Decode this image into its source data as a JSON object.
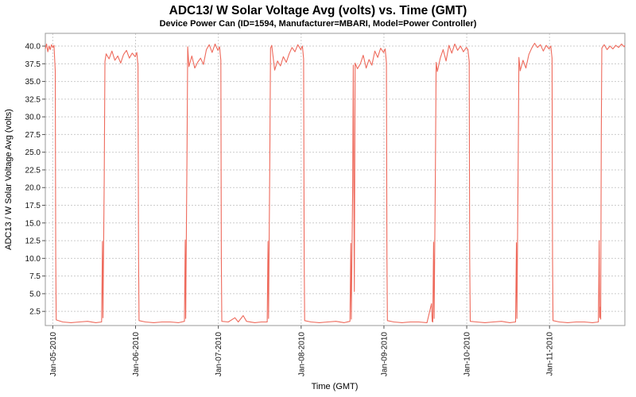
{
  "page": {
    "title": "ADC13/ W Solar Voltage Avg (volts) vs. Time (GMT)",
    "subtitle": "Device Power Can (ID=1594, Manufacturer=MBARI, Model=Power Controller)"
  },
  "chart_data": {
    "type": "line",
    "title": "ADC13/ W Solar Voltage Avg (volts) vs. Time (GMT)",
    "subtitle": "Device Power Can (ID=1594, Manufacturer=MBARI, Model=Power Controller)",
    "xlabel": "Time (GMT)",
    "ylabel": "ADC13 / W Solar Voltage Avg (volts)",
    "legend": "none",
    "grid": "dashed",
    "grid_color": "#cccccc",
    "xlim": [
      -0.09,
      6.91
    ],
    "ylim": [
      0.5,
      41.8
    ],
    "x_unit": "days relative to Jan-05-2010 00:00 GMT",
    "x_tick_values": [
      0,
      1,
      2,
      3,
      4,
      5,
      6
    ],
    "x_tick_labels": [
      "Jan-05-2010",
      "Jan-06-2010",
      "Jan-07-2010",
      "Jan-08-2010",
      "Jan-09-2010",
      "Jan-10-2010",
      "Jan-11-2010"
    ],
    "y_ticks": [
      2.5,
      5.0,
      7.5,
      10.0,
      12.5,
      15.0,
      17.5,
      20.0,
      22.5,
      25.0,
      27.5,
      30.0,
      32.5,
      35.0,
      37.5,
      40.0
    ],
    "series": [
      {
        "name": "ADC13/ W Solar Voltage Avg (volts)",
        "color": "#ee6a5c",
        "points": [
          [
            -0.09,
            39.6
          ],
          [
            -0.075,
            40.3
          ],
          [
            -0.06,
            39.2
          ],
          [
            -0.045,
            40.0
          ],
          [
            -0.03,
            39.5
          ],
          [
            -0.015,
            40.2
          ],
          [
            0.0,
            39.8
          ],
          [
            0.015,
            40.1
          ],
          [
            0.03,
            36.5
          ],
          [
            0.036,
            10.6
          ],
          [
            0.042,
            1.3
          ],
          [
            0.12,
            1.0
          ],
          [
            0.22,
            0.9
          ],
          [
            0.32,
            1.0
          ],
          [
            0.42,
            1.1
          ],
          [
            0.52,
            0.9
          ],
          [
            0.59,
            1.0
          ],
          [
            0.6,
            12.4
          ],
          [
            0.606,
            1.6
          ],
          [
            0.622,
            21.0
          ],
          [
            0.63,
            37.8
          ],
          [
            0.645,
            38.9
          ],
          [
            0.68,
            38.2
          ],
          [
            0.715,
            39.3
          ],
          [
            0.75,
            38.0
          ],
          [
            0.785,
            38.6
          ],
          [
            0.82,
            37.6
          ],
          [
            0.855,
            38.8
          ],
          [
            0.89,
            39.4
          ],
          [
            0.925,
            38.3
          ],
          [
            0.96,
            39.0
          ],
          [
            0.995,
            38.5
          ],
          [
            1.015,
            39.1
          ],
          [
            1.03,
            37.2
          ],
          [
            1.036,
            10.4
          ],
          [
            1.042,
            1.2
          ],
          [
            1.12,
            1.0
          ],
          [
            1.22,
            0.9
          ],
          [
            1.32,
            1.0
          ],
          [
            1.42,
            1.0
          ],
          [
            1.52,
            0.9
          ],
          [
            1.59,
            1.1
          ],
          [
            1.6,
            12.6
          ],
          [
            1.606,
            1.5
          ],
          [
            1.622,
            26.0
          ],
          [
            1.63,
            39.9
          ],
          [
            1.645,
            37.1
          ],
          [
            1.68,
            38.6
          ],
          [
            1.715,
            36.9
          ],
          [
            1.75,
            37.7
          ],
          [
            1.785,
            38.3
          ],
          [
            1.82,
            37.4
          ],
          [
            1.855,
            39.5
          ],
          [
            1.89,
            40.2
          ],
          [
            1.925,
            39.1
          ],
          [
            1.96,
            40.3
          ],
          [
            1.995,
            39.4
          ],
          [
            2.015,
            39.9
          ],
          [
            2.03,
            38.0
          ],
          [
            2.036,
            10.2
          ],
          [
            2.042,
            1.1
          ],
          [
            2.12,
            1.0
          ],
          [
            2.2,
            1.6
          ],
          [
            2.24,
            1.0
          ],
          [
            2.3,
            1.9
          ],
          [
            2.34,
            1.1
          ],
          [
            2.44,
            0.9
          ],
          [
            2.52,
            1.0
          ],
          [
            2.59,
            1.0
          ],
          [
            2.6,
            12.4
          ],
          [
            2.606,
            1.5
          ],
          [
            2.622,
            24.0
          ],
          [
            2.63,
            39.7
          ],
          [
            2.645,
            40.1
          ],
          [
            2.68,
            36.6
          ],
          [
            2.715,
            37.9
          ],
          [
            2.75,
            37.2
          ],
          [
            2.785,
            38.5
          ],
          [
            2.82,
            37.7
          ],
          [
            2.855,
            38.9
          ],
          [
            2.89,
            39.8
          ],
          [
            2.925,
            39.2
          ],
          [
            2.96,
            40.2
          ],
          [
            2.995,
            39.5
          ],
          [
            3.015,
            40.0
          ],
          [
            3.03,
            38.2
          ],
          [
            3.036,
            10.5
          ],
          [
            3.042,
            1.2
          ],
          [
            3.12,
            1.0
          ],
          [
            3.22,
            0.9
          ],
          [
            3.32,
            1.0
          ],
          [
            3.42,
            1.1
          ],
          [
            3.52,
            0.9
          ],
          [
            3.59,
            1.1
          ],
          [
            3.6,
            12.1
          ],
          [
            3.606,
            1.4
          ],
          [
            3.622,
            20.0
          ],
          [
            3.63,
            37.3
          ],
          [
            3.642,
            5.3
          ],
          [
            3.652,
            37.6
          ],
          [
            3.68,
            36.8
          ],
          [
            3.715,
            37.5
          ],
          [
            3.75,
            38.7
          ],
          [
            3.785,
            36.9
          ],
          [
            3.82,
            38.1
          ],
          [
            3.855,
            37.3
          ],
          [
            3.89,
            39.3
          ],
          [
            3.925,
            38.4
          ],
          [
            3.96,
            39.7
          ],
          [
            3.995,
            39.1
          ],
          [
            4.015,
            39.6
          ],
          [
            4.03,
            37.6
          ],
          [
            4.036,
            10.6
          ],
          [
            4.042,
            1.2
          ],
          [
            4.12,
            1.0
          ],
          [
            4.22,
            0.9
          ],
          [
            4.32,
            1.0
          ],
          [
            4.42,
            1.0
          ],
          [
            4.52,
            0.9
          ],
          [
            4.575,
            3.6
          ],
          [
            4.582,
            1.1
          ],
          [
            4.59,
            1.0
          ],
          [
            4.6,
            12.3
          ],
          [
            4.606,
            1.5
          ],
          [
            4.622,
            23.0
          ],
          [
            4.63,
            37.7
          ],
          [
            4.645,
            36.4
          ],
          [
            4.68,
            38.3
          ],
          [
            4.715,
            39.5
          ],
          [
            4.75,
            37.9
          ],
          [
            4.785,
            40.1
          ],
          [
            4.82,
            39.0
          ],
          [
            4.855,
            40.3
          ],
          [
            4.89,
            39.4
          ],
          [
            4.925,
            40.0
          ],
          [
            4.96,
            39.2
          ],
          [
            4.995,
            39.8
          ],
          [
            5.015,
            39.5
          ],
          [
            5.03,
            37.8
          ],
          [
            5.036,
            10.3
          ],
          [
            5.042,
            1.1
          ],
          [
            5.12,
            1.0
          ],
          [
            5.22,
            0.9
          ],
          [
            5.32,
            1.0
          ],
          [
            5.42,
            1.1
          ],
          [
            5.52,
            0.9
          ],
          [
            5.59,
            1.0
          ],
          [
            5.6,
            12.2
          ],
          [
            5.606,
            1.5
          ],
          [
            5.622,
            25.0
          ],
          [
            5.63,
            38.4
          ],
          [
            5.645,
            36.5
          ],
          [
            5.68,
            38.0
          ],
          [
            5.715,
            36.9
          ],
          [
            5.75,
            38.8
          ],
          [
            5.785,
            39.7
          ],
          [
            5.82,
            40.4
          ],
          [
            5.855,
            39.8
          ],
          [
            5.89,
            40.2
          ],
          [
            5.925,
            39.3
          ],
          [
            5.96,
            40.1
          ],
          [
            5.995,
            39.6
          ],
          [
            6.015,
            40.0
          ],
          [
            6.03,
            38.3
          ],
          [
            6.036,
            10.4
          ],
          [
            6.042,
            1.2
          ],
          [
            6.12,
            1.0
          ],
          [
            6.22,
            0.9
          ],
          [
            6.32,
            1.0
          ],
          [
            6.42,
            1.0
          ],
          [
            6.52,
            0.9
          ],
          [
            6.59,
            1.0
          ],
          [
            6.6,
            12.5
          ],
          [
            6.606,
            1.6
          ],
          [
            6.614,
            3.1
          ],
          [
            6.618,
            1.4
          ],
          [
            6.625,
            27.0
          ],
          [
            6.632,
            39.7
          ],
          [
            6.66,
            40.2
          ],
          [
            6.695,
            39.5
          ],
          [
            6.73,
            40.0
          ],
          [
            6.765,
            39.6
          ],
          [
            6.8,
            40.1
          ],
          [
            6.835,
            39.8
          ],
          [
            6.87,
            40.3
          ],
          [
            6.9,
            39.9
          ],
          [
            6.91,
            40.1
          ]
        ]
      }
    ]
  }
}
